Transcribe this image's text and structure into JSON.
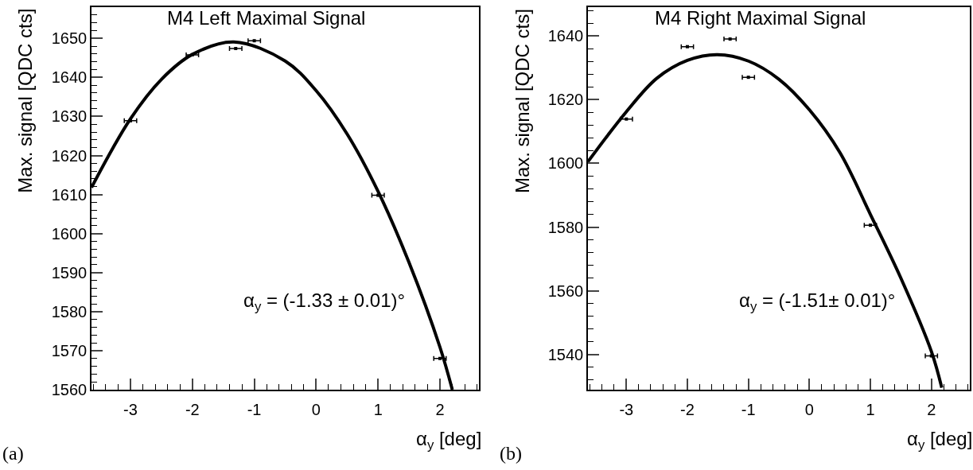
{
  "chart_data": [
    {
      "type": "scatter",
      "title": "M4 Left Maximal Signal",
      "xlabel": "α$_{y}$ [deg]",
      "ylabel": "Max. signal [QDC cts]",
      "annotations": [
        "α$_{y}$ = (-1.33 ± 0.01)°",
        "(a)"
      ],
      "xlim": [
        -3.63,
        2.63
      ],
      "xticks": [
        -3,
        -2,
        -1,
        0,
        1,
        2
      ],
      "ylim": [
        1560,
        1658
      ],
      "yticks": [
        1560,
        1570,
        1580,
        1590,
        1600,
        1610,
        1620,
        1630,
        1640,
        1650
      ],
      "grid": false,
      "series": [
        {
          "marker": "square",
          "color": "#000000",
          "x": [
            -3,
            -2,
            -1.3,
            -1,
            1,
            2
          ],
          "values": [
            1628.9,
            1645.8,
            1647.4,
            1649.4,
            1609.8,
            1568.0
          ],
          "xerrors": [
            0.1,
            0.1,
            0.1,
            0.1,
            0.1,
            0.1
          ]
        },
        {
          "type": "line",
          "color": "#000000",
          "line_style": "solid",
          "x": [
            -3.63,
            -3,
            -2.5,
            -2,
            -1.33,
            -0.5,
            0,
            0.5,
            1,
            1.5,
            2,
            2.2
          ],
          "values": [
            1611.8,
            1629.4,
            1639.5,
            1645.9,
            1649.1,
            1644.2,
            1636.6,
            1625.5,
            1610.8,
            1592.6,
            1570.9,
            1560
          ]
        }
      ]
    },
    {
      "type": "scatter",
      "title": "M4 Right Maximal Signal",
      "xlabel": "α$_{y}$ [deg]",
      "ylabel": "Max. signal [QDC cts]",
      "annotations": [
        "α$_{y}$ = (-1.51± 0.01)°",
        "(b)"
      ],
      "xlim": [
        -3.63,
        2.63
      ],
      "xticks": [
        -3,
        -2,
        -1,
        0,
        1,
        2
      ],
      "ylim": [
        1529,
        1649
      ],
      "yticks": [
        1540,
        1560,
        1580,
        1600,
        1620,
        1640
      ],
      "grid": false,
      "series": [
        {
          "marker": "square",
          "color": "#000000",
          "x": [
            -3,
            -2,
            -1.3,
            -1,
            1,
            2
          ],
          "values": [
            1613.9,
            1636.6,
            1639.0,
            1627.0,
            1580.6,
            1539.6
          ],
          "xerrors": [
            0.1,
            0.1,
            0.1,
            0.1,
            0.1,
            0.1
          ]
        },
        {
          "type": "line",
          "color": "#000000",
          "line_style": "solid",
          "x": [
            -3.63,
            -3,
            -2.5,
            -2,
            -1.51,
            -1,
            -0.5,
            0,
            0.5,
            1,
            1.5,
            2,
            2.17
          ],
          "values": [
            1600.5,
            1616.2,
            1626.7,
            1632.3,
            1634.1,
            1632.1,
            1626.4,
            1616.8,
            1603.4,
            1584,
            1564,
            1541,
            1529.6
          ]
        }
      ]
    }
  ]
}
